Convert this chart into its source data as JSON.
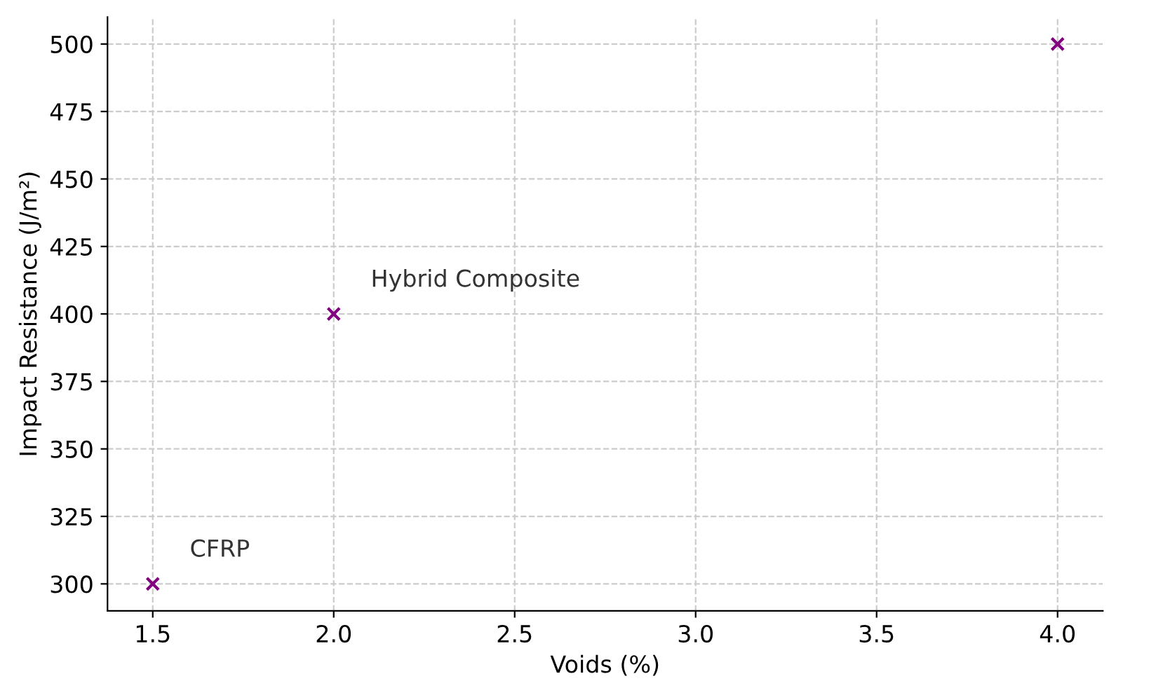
{
  "chart_data": {
    "type": "scatter",
    "xlabel": "Voids (%)",
    "ylabel": "Impact Resistance (J/m²)",
    "x": [
      1.5,
      2.0,
      4.0
    ],
    "series": [
      {
        "color": "#800080",
        "values": [
          300,
          400,
          500
        ]
      }
    ],
    "marker": "cross",
    "grid": true,
    "line_style": "dashed",
    "xlim": [
      1.375,
      4.125
    ],
    "ylim": [
      290,
      510
    ],
    "xticks": [
      {
        "value": 1.5,
        "label": "1.5"
      },
      {
        "value": 2.0,
        "label": "2.0"
      },
      {
        "value": 2.5,
        "label": "2.5"
      },
      {
        "value": 3.0,
        "label": "3.0"
      },
      {
        "value": 3.5,
        "label": "3.5"
      },
      {
        "value": 4.0,
        "label": "4.0"
      }
    ],
    "yticks": [
      300,
      325,
      350,
      375,
      400,
      425,
      450,
      475,
      500
    ],
    "annotations": [
      {
        "text": "CFRP",
        "x": 1.5,
        "y": 300
      },
      {
        "text": "Hybrid Composite",
        "x": 2.0,
        "y": 400
      }
    ]
  }
}
